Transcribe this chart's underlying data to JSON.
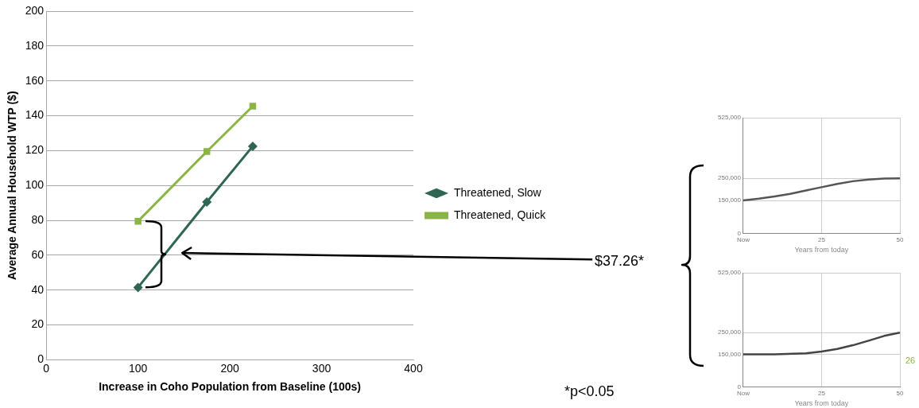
{
  "chart_data": [
    {
      "type": "line",
      "xlabel": "Increase in Coho Population from Baseline (100s)",
      "ylabel": "Average Annual Household WTP ($)",
      "xlim": [
        0,
        400
      ],
      "xticks": [
        0,
        100,
        200,
        300,
        400
      ],
      "ylim": [
        0,
        200
      ],
      "yticks": [
        0,
        20,
        40,
        60,
        80,
        100,
        120,
        140,
        160,
        180,
        200
      ],
      "grid": "y",
      "legend": "right",
      "series": [
        {
          "name": "Threatened, Slow",
          "color": "#2e6652",
          "marker": "diamond",
          "x": [
            100,
            175,
            225
          ],
          "values": [
            41.5,
            90.5,
            122.5
          ]
        },
        {
          "name": "Threatened, Quick",
          "color": "#8ab545",
          "marker": "square",
          "x": [
            100,
            175,
            225
          ],
          "values": [
            79.5,
            119.5,
            145.5
          ]
        }
      ],
      "annotations": [
        "$37.26*",
        "*p<0.05",
        "26"
      ]
    },
    {
      "type": "line",
      "xlabel": "Years from today",
      "xlim": [
        0,
        50
      ],
      "xticks": [
        {
          "value": 0,
          "label": "Now"
        },
        25,
        50
      ],
      "ylim": [
        0,
        525000
      ],
      "yticks": [
        0,
        {
          "value": 150000,
          "label": "150,000"
        },
        {
          "value": 250000,
          "label": "250,000"
        },
        {
          "value": 525000,
          "label": "525,000"
        }
      ],
      "grid": true,
      "marker": "none",
      "series": [
        {
          "color": "#555555",
          "x": [
            0,
            5,
            10,
            15,
            20,
            25,
            30,
            35,
            40,
            45,
            50
          ],
          "values": [
            150000,
            158000,
            168000,
            180000,
            195000,
            210000,
            225000,
            237000,
            245000,
            249000,
            250000
          ]
        }
      ]
    },
    {
      "type": "line",
      "xlabel": "Years from today",
      "xlim": [
        0,
        50
      ],
      "xticks": [
        {
          "value": 0,
          "label": "Now"
        },
        25,
        50
      ],
      "ylim": [
        0,
        525000
      ],
      "yticks": [
        0,
        {
          "value": 150000,
          "label": "150,000"
        },
        {
          "value": 250000,
          "label": "250,000"
        },
        {
          "value": 525000,
          "label": "525,000"
        }
      ],
      "grid": true,
      "marker": "none",
      "series": [
        {
          "color": "#444444",
          "x": [
            0,
            10,
            20,
            25,
            30,
            35,
            40,
            45,
            50
          ],
          "values": [
            150000,
            150000,
            155000,
            163000,
            175000,
            192000,
            213000,
            235000,
            250000
          ]
        }
      ]
    }
  ]
}
